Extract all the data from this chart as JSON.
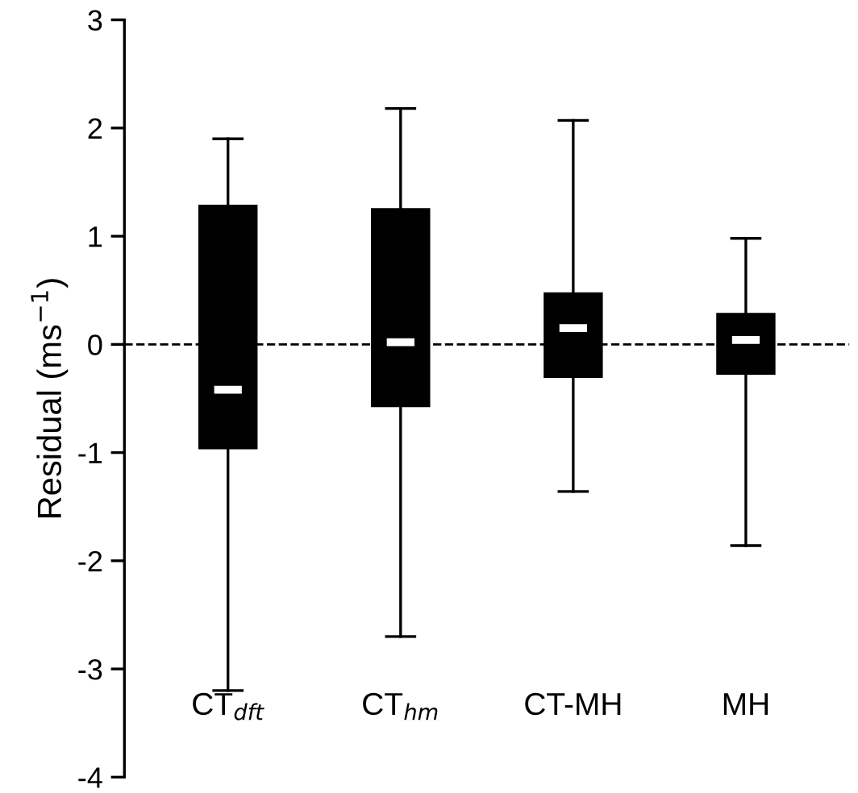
{
  "chart_data": {
    "type": "box",
    "ylabel": "Residual (ms$^{−1}$)",
    "categories": [
      "CT$_{dft}$",
      "CT$_{hm}$",
      "CT-MH",
      "MH"
    ],
    "color": "#000000",
    "boxes": [
      {
        "low": -3.2,
        "q1": -0.96,
        "median": -0.42,
        "q3": 1.28,
        "high": 1.9
      },
      {
        "low": -2.7,
        "q1": -0.57,
        "median": 0.02,
        "q3": 1.25,
        "high": 2.18
      },
      {
        "low": -1.36,
        "q1": -0.3,
        "median": 0.15,
        "q3": 0.47,
        "high": 2.07
      },
      {
        "low": -1.86,
        "q1": -0.27,
        "median": 0.04,
        "q3": 0.28,
        "high": 0.98
      }
    ],
    "ylim": [
      -4,
      3
    ],
    "yticks": [
      -4,
      -3,
      -2,
      -1,
      0,
      1,
      2,
      3
    ],
    "ref_lines": [
      {
        "axis": "y",
        "value": 0,
        "line_style": "dashed",
        "color": "#000000"
      }
    ],
    "grid": false,
    "legend": false
  }
}
